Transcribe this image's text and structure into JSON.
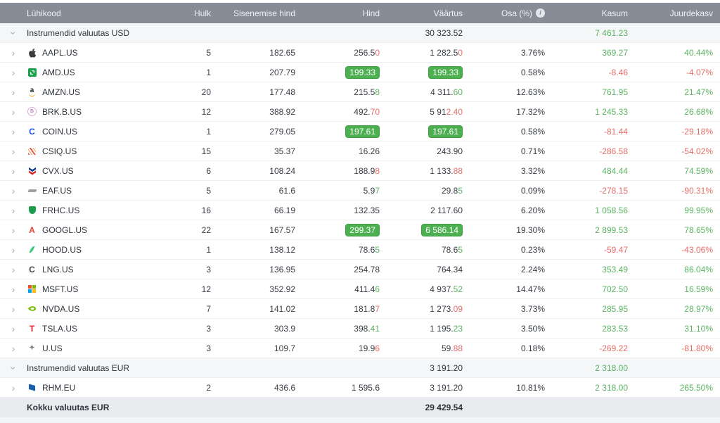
{
  "columns": [
    "Lühikood",
    "Hulk",
    "Sisenemise hind",
    "Hind",
    "Väärtus",
    "Osa (%)",
    "Kasum",
    "Juurdekasv"
  ],
  "info_icon_glyph": "i",
  "rows": [
    {
      "type": "group",
      "label": "Instrumendid valuutas USD",
      "vaartus": "30 323.52",
      "kasum": "7 461.23"
    },
    {
      "type": "data",
      "ticker": "AAPL.US",
      "icon": "apple-logo",
      "hulk": "5",
      "entry": "182.65",
      "hind": {
        "parts": [
          {
            "t": "256.5",
            "c": "dark"
          },
          {
            "t": "0",
            "c": "red"
          }
        ]
      },
      "vaartus": {
        "parts": [
          {
            "t": "1 282.5",
            "c": "dark"
          },
          {
            "t": "0",
            "c": "red"
          }
        ]
      },
      "osa": "3.76%",
      "kasum": {
        "t": "369.27",
        "c": "green"
      },
      "juurdekasv": {
        "t": "40.44%",
        "c": "green"
      }
    },
    {
      "type": "data",
      "ticker": "AMD.US",
      "icon": "amd-logo",
      "hulk": "1",
      "entry": "207.79",
      "hind": {
        "badge": "199.33"
      },
      "vaartus": {
        "badge": "199.33"
      },
      "osa": "0.58%",
      "kasum": {
        "t": "-8.46",
        "c": "red"
      },
      "juurdekasv": {
        "t": "-4.07%",
        "c": "red"
      }
    },
    {
      "type": "data",
      "ticker": "AMZN.US",
      "icon": "amazon-logo",
      "hulk": "20",
      "entry": "177.48",
      "hind": {
        "parts": [
          {
            "t": "215.5",
            "c": "dark"
          },
          {
            "t": "8",
            "c": "green"
          }
        ]
      },
      "vaartus": {
        "parts": [
          {
            "t": "4 311.",
            "c": "dark"
          },
          {
            "t": "60",
            "c": "green"
          }
        ]
      },
      "osa": "12.63%",
      "kasum": {
        "t": "761.95",
        "c": "green"
      },
      "juurdekasv": {
        "t": "21.47%",
        "c": "green"
      }
    },
    {
      "type": "data",
      "ticker": "BRK.B.US",
      "icon": "berkshire-logo",
      "hulk": "12",
      "entry": "388.92",
      "hind": {
        "parts": [
          {
            "t": "492.",
            "c": "dark"
          },
          {
            "t": "70",
            "c": "red"
          }
        ]
      },
      "vaartus": {
        "parts": [
          {
            "t": "5 91",
            "c": "dark"
          },
          {
            "t": "2.40",
            "c": "red"
          }
        ]
      },
      "osa": "17.32%",
      "kasum": {
        "t": "1 245.33",
        "c": "green"
      },
      "juurdekasv": {
        "t": "26.68%",
        "c": "green"
      }
    },
    {
      "type": "data",
      "ticker": "COIN.US",
      "icon": "coinbase-logo",
      "hulk": "1",
      "entry": "279.05",
      "hind": {
        "badge": "197.61"
      },
      "vaartus": {
        "badge": "197.61"
      },
      "osa": "0.58%",
      "kasum": {
        "t": "-81.44",
        "c": "red"
      },
      "juurdekasv": {
        "t": "-29.18%",
        "c": "red"
      }
    },
    {
      "type": "data",
      "ticker": "CSIQ.US",
      "icon": "canadian-solar-logo",
      "hulk": "15",
      "entry": "35.37",
      "hind": {
        "parts": [
          {
            "t": "16.26",
            "c": "dark"
          }
        ]
      },
      "vaartus": {
        "parts": [
          {
            "t": "243.90",
            "c": "dark"
          }
        ]
      },
      "osa": "0.71%",
      "kasum": {
        "t": "-286.58",
        "c": "red"
      },
      "juurdekasv": {
        "t": "-54.02%",
        "c": "red"
      }
    },
    {
      "type": "data",
      "ticker": "CVX.US",
      "icon": "chevron-corp-logo",
      "hulk": "6",
      "entry": "108.24",
      "hind": {
        "parts": [
          {
            "t": "188.9",
            "c": "dark"
          },
          {
            "t": "8",
            "c": "red"
          }
        ]
      },
      "vaartus": {
        "parts": [
          {
            "t": "1 133.",
            "c": "dark"
          },
          {
            "t": "88",
            "c": "red"
          }
        ]
      },
      "osa": "3.32%",
      "kasum": {
        "t": "484.44",
        "c": "green"
      },
      "juurdekasv": {
        "t": "74.59%",
        "c": "green"
      }
    },
    {
      "type": "data",
      "ticker": "EAF.US",
      "icon": "graftech-logo",
      "hulk": "5",
      "entry": "61.6",
      "hind": {
        "parts": [
          {
            "t": "5.9",
            "c": "dark"
          },
          {
            "t": "7",
            "c": "green"
          }
        ]
      },
      "vaartus": {
        "parts": [
          {
            "t": "29.8",
            "c": "dark"
          },
          {
            "t": "5",
            "c": "green"
          }
        ]
      },
      "osa": "0.09%",
      "kasum": {
        "t": "-278.15",
        "c": "red"
      },
      "juurdekasv": {
        "t": "-90.31%",
        "c": "red"
      }
    },
    {
      "type": "data",
      "ticker": "FRHC.US",
      "icon": "freedom-holding-logo",
      "hulk": "16",
      "entry": "66.19",
      "hind": {
        "parts": [
          {
            "t": "132.35",
            "c": "dark"
          }
        ]
      },
      "vaartus": {
        "parts": [
          {
            "t": "2 117.60",
            "c": "dark"
          }
        ]
      },
      "osa": "6.20%",
      "kasum": {
        "t": "1 058.56",
        "c": "green"
      },
      "juurdekasv": {
        "t": "99.95%",
        "c": "green"
      }
    },
    {
      "type": "data",
      "ticker": "GOOGL.US",
      "icon": "alphabet-logo",
      "hulk": "22",
      "entry": "167.57",
      "hind": {
        "badge": "299.37"
      },
      "vaartus": {
        "badge": "6 586.14"
      },
      "osa": "19.30%",
      "kasum": {
        "t": "2 899.53",
        "c": "green"
      },
      "juurdekasv": {
        "t": "78.65%",
        "c": "green"
      }
    },
    {
      "type": "data",
      "ticker": "HOOD.US",
      "icon": "robinhood-logo",
      "hulk": "1",
      "entry": "138.12",
      "hind": {
        "parts": [
          {
            "t": "78.6",
            "c": "dark"
          },
          {
            "t": "5",
            "c": "green"
          }
        ]
      },
      "vaartus": {
        "parts": [
          {
            "t": "78.6",
            "c": "dark"
          },
          {
            "t": "5",
            "c": "green"
          }
        ]
      },
      "osa": "0.23%",
      "kasum": {
        "t": "-59.47",
        "c": "red"
      },
      "juurdekasv": {
        "t": "-43.06%",
        "c": "red"
      }
    },
    {
      "type": "data",
      "ticker": "LNG.US",
      "icon": "cheniere-logo",
      "hulk": "3",
      "entry": "136.95",
      "hind": {
        "parts": [
          {
            "t": "254.78",
            "c": "dark"
          }
        ]
      },
      "vaartus": {
        "parts": [
          {
            "t": "764.34",
            "c": "dark"
          }
        ]
      },
      "osa": "2.24%",
      "kasum": {
        "t": "353.49",
        "c": "green"
      },
      "juurdekasv": {
        "t": "86.04%",
        "c": "green"
      }
    },
    {
      "type": "data",
      "ticker": "MSFT.US",
      "icon": "microsoft-logo",
      "hulk": "12",
      "entry": "352.92",
      "hind": {
        "parts": [
          {
            "t": "411.4",
            "c": "dark"
          },
          {
            "t": "6",
            "c": "green"
          }
        ]
      },
      "vaartus": {
        "parts": [
          {
            "t": "4 937.",
            "c": "dark"
          },
          {
            "t": "52",
            "c": "green"
          }
        ]
      },
      "osa": "14.47%",
      "kasum": {
        "t": "702.50",
        "c": "green"
      },
      "juurdekasv": {
        "t": "16.59%",
        "c": "green"
      }
    },
    {
      "type": "data",
      "ticker": "NVDA.US",
      "icon": "nvidia-logo",
      "hulk": "7",
      "entry": "141.02",
      "hind": {
        "parts": [
          {
            "t": "181.8",
            "c": "dark"
          },
          {
            "t": "7",
            "c": "red"
          }
        ]
      },
      "vaartus": {
        "parts": [
          {
            "t": "1 273.",
            "c": "dark"
          },
          {
            "t": "09",
            "c": "red"
          }
        ]
      },
      "osa": "3.73%",
      "kasum": {
        "t": "285.95",
        "c": "green"
      },
      "juurdekasv": {
        "t": "28.97%",
        "c": "green"
      }
    },
    {
      "type": "data",
      "ticker": "TSLA.US",
      "icon": "tesla-logo",
      "hulk": "3",
      "entry": "303.9",
      "hind": {
        "parts": [
          {
            "t": "398.",
            "c": "dark"
          },
          {
            "t": "41",
            "c": "green"
          }
        ]
      },
      "vaartus": {
        "parts": [
          {
            "t": "1 195.",
            "c": "dark"
          },
          {
            "t": "23",
            "c": "green"
          }
        ]
      },
      "osa": "3.50%",
      "kasum": {
        "t": "283.53",
        "c": "green"
      },
      "juurdekasv": {
        "t": "31.10%",
        "c": "green"
      }
    },
    {
      "type": "data",
      "ticker": "U.US",
      "icon": "unity-logo",
      "hulk": "3",
      "entry": "109.7",
      "hind": {
        "parts": [
          {
            "t": "19.9",
            "c": "dark"
          },
          {
            "t": "6",
            "c": "red"
          }
        ]
      },
      "vaartus": {
        "parts": [
          {
            "t": "59.",
            "c": "dark"
          },
          {
            "t": "88",
            "c": "red"
          }
        ]
      },
      "osa": "0.18%",
      "kasum": {
        "t": "-269.22",
        "c": "red"
      },
      "juurdekasv": {
        "t": "-81.80%",
        "c": "red"
      }
    },
    {
      "type": "group",
      "label": "Instrumendid valuutas EUR",
      "vaartus": "3 191.20",
      "kasum": "2 318.00"
    },
    {
      "type": "data",
      "ticker": "RHM.EU",
      "icon": "rheinmetall-logo",
      "hulk": "2",
      "entry": "436.6",
      "hind": {
        "parts": [
          {
            "t": "1 595.6",
            "c": "dark"
          }
        ]
      },
      "vaartus": {
        "parts": [
          {
            "t": "3 191.20",
            "c": "dark"
          }
        ]
      },
      "osa": "10.81%",
      "kasum": {
        "t": "2 318.00",
        "c": "green"
      },
      "juurdekasv": {
        "t": "265.50%",
        "c": "green"
      }
    }
  ],
  "footer": {
    "label": "Kokku valuutas EUR",
    "vaartus": "29 429.54"
  },
  "theme": {
    "header_bg": "#878d97",
    "header_text": "#eff1f4",
    "group_bg": "#f5f6f8",
    "footer_bg": "#e9ebee",
    "green": "#5bb463",
    "red": "#e66d68",
    "badge_green": "#4caf50",
    "dark_text": "#383d44",
    "separator": "#eceef1"
  }
}
